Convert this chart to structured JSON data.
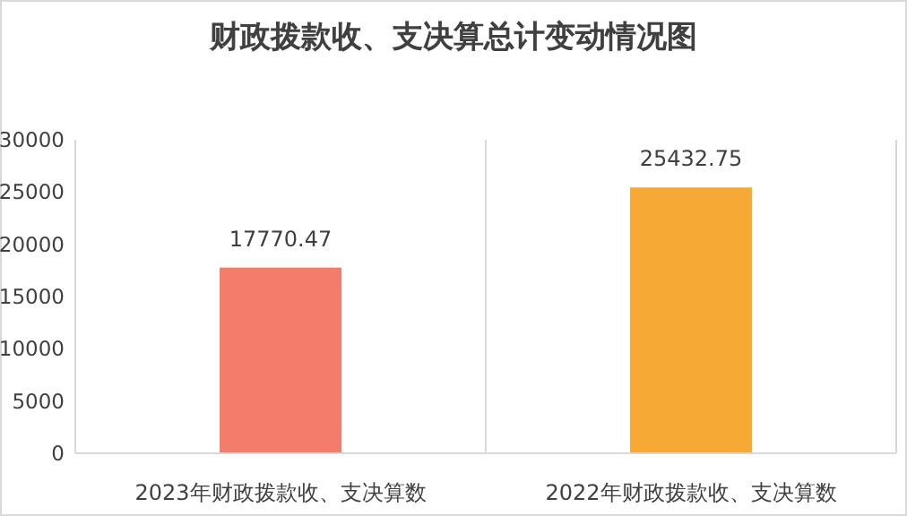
{
  "chart_data": {
    "type": "bar",
    "title": "财政拨款收、支决算总计变动情况图",
    "categories": [
      "2023年财政拨款收、支决算数",
      "2022年财政拨款收、支决算数"
    ],
    "values": [
      17770.47,
      25432.75
    ],
    "colors": [
      "#f47c6a",
      "#f7a935"
    ],
    "ylim": [
      0,
      30000
    ],
    "yticks": [
      0,
      5000,
      10000,
      15000,
      20000,
      25000,
      30000
    ],
    "grid": "x",
    "data_labels": true
  }
}
